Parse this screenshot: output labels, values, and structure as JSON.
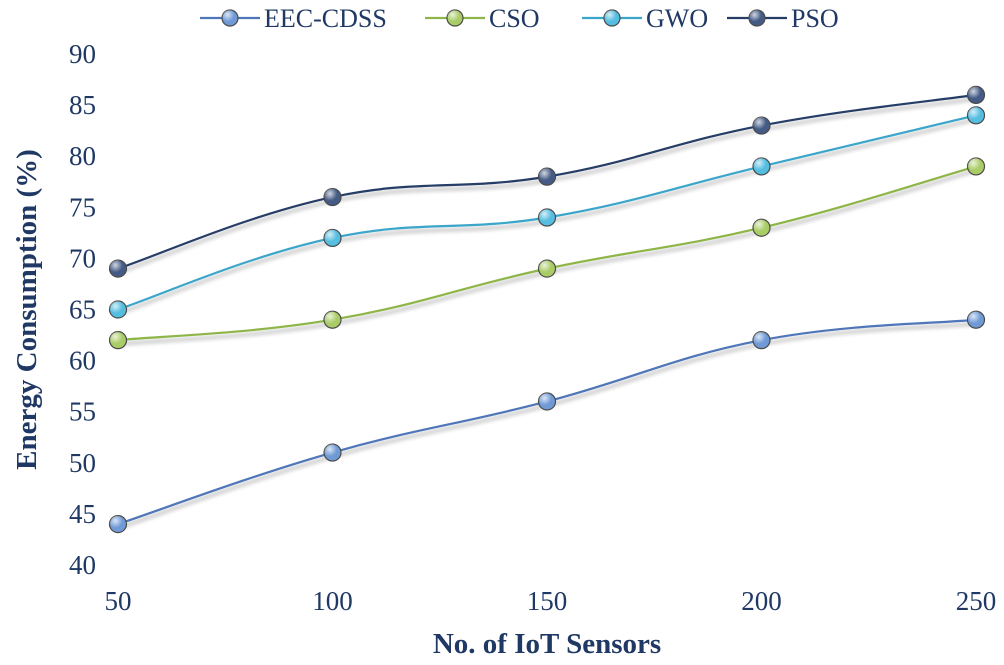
{
  "chart_data": {
    "type": "line",
    "title": "",
    "xlabel": "No. of IoT Sensors",
    "ylabel": "Energy Consumption (%)",
    "x": [
      50,
      100,
      150,
      200,
      250
    ],
    "x_tick_labels": [
      "50",
      "100",
      "150",
      "200",
      "250"
    ],
    "ylim": [
      40,
      90
    ],
    "y_ticks": [
      40,
      45,
      50,
      55,
      60,
      65,
      70,
      75,
      80,
      85,
      90
    ],
    "grid": false,
    "legend_position": "top",
    "series": [
      {
        "name": "EEC-CDSS",
        "values": [
          44,
          51,
          56,
          62,
          64
        ],
        "color": "#4f76b8",
        "marker": "#6f9ad6"
      },
      {
        "name": "CSO",
        "values": [
          62,
          64,
          69,
          73,
          79
        ],
        "color": "#8eb547",
        "marker": "#a9cc66"
      },
      {
        "name": "GWO",
        "values": [
          65,
          72,
          74,
          79,
          84
        ],
        "color": "#3aa6c9",
        "marker": "#55bde0"
      },
      {
        "name": "PSO",
        "values": [
          69,
          76,
          78,
          83,
          86
        ],
        "color": "#253d66",
        "marker": "#445b85"
      }
    ]
  }
}
